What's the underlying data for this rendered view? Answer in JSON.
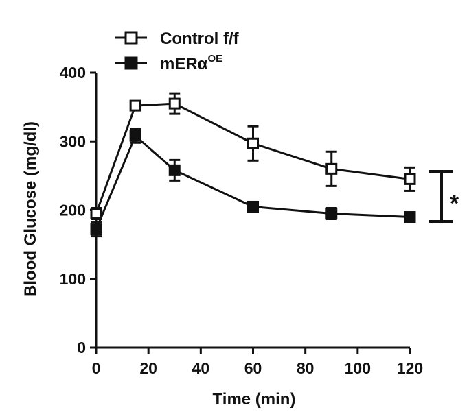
{
  "chart_data": {
    "type": "line",
    "xlabel": "Time (min)",
    "ylabel": "Blood Glucose (mg/dl)",
    "xlim": [
      0,
      120
    ],
    "ylim": [
      0,
      400
    ],
    "xticks": [
      0,
      20,
      40,
      60,
      80,
      100,
      120
    ],
    "yticks": [
      0,
      100,
      200,
      300,
      400
    ],
    "grid": false,
    "legend_position": "top-left",
    "x": [
      0,
      15,
      30,
      60,
      90,
      120
    ],
    "series": [
      {
        "name": "Control f/f",
        "name_base": "mERα",
        "marker": "open-square",
        "color": "#111111",
        "values": [
          195,
          352,
          355,
          297,
          260,
          245
        ],
        "errors": [
          8,
          5,
          15,
          25,
          25,
          17
        ]
      },
      {
        "name": "mERαOE",
        "name_base": "mERα",
        "name_sup": "OE",
        "marker": "filled-square",
        "color": "#111111",
        "values": [
          172,
          308,
          258,
          205,
          195,
          190
        ],
        "errors": [
          10,
          10,
          15,
          7,
          8,
          5
        ]
      }
    ],
    "annotations": [
      {
        "text": "*",
        "between_series": [
          "Control f/f",
          "mERαOE"
        ],
        "at_x": 120
      }
    ]
  }
}
